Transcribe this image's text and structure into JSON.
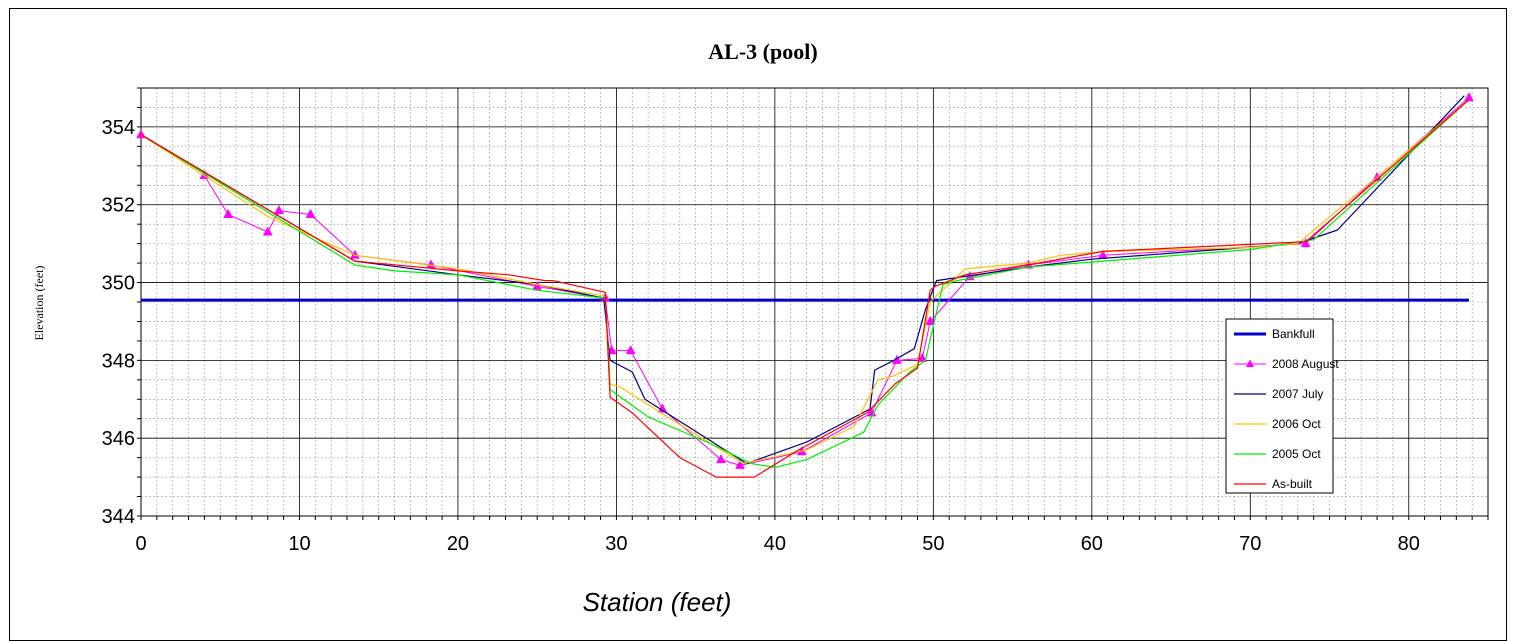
{
  "chart_data": {
    "type": "line",
    "title": "AL-3  (pool)",
    "xlabel": "Station (feet)",
    "ylabel": "Elevation (feet)",
    "xlim": [
      0,
      85
    ],
    "ylim": [
      344,
      355
    ],
    "x_ticks": [
      "0",
      "10",
      "20",
      "30",
      "40",
      "50",
      "60",
      "70",
      "80"
    ],
    "y_ticks": [
      "344",
      "346",
      "348",
      "350",
      "352",
      "354"
    ],
    "grid": true,
    "legend_placement": "right-lower",
    "series": [
      {
        "name": "Bankfull",
        "color": "#0000CC",
        "marker": "none",
        "width": 3,
        "x": [
          0,
          83.8
        ],
        "y": [
          349.55,
          349.55
        ]
      },
      {
        "name": "2008 August",
        "color": "#FF00FF",
        "marker": "triangle",
        "width": 1,
        "x": [
          0,
          4,
          5.5,
          8,
          8.7,
          10.7,
          13.5,
          18.3,
          25,
          29.3,
          29.7,
          30.9,
          32.9,
          36.6,
          37.8,
          41.7,
          46.1,
          47.7,
          49.3,
          49.8,
          52.3,
          56,
          60.7,
          73.5,
          78,
          83.8
        ],
        "y": [
          353.8,
          352.75,
          351.75,
          351.3,
          351.85,
          351.75,
          350.7,
          350.45,
          349.9,
          349.6,
          348.25,
          348.25,
          346.75,
          345.45,
          345.3,
          345.65,
          346.65,
          348,
          348.05,
          349,
          350.15,
          350.45,
          350.7,
          351,
          352.7,
          354.75
        ]
      },
      {
        "name": "2007 July",
        "color": "#000080",
        "marker": "none",
        "width": 1.2,
        "x": [
          0,
          13.5,
          20,
          25,
          29.2,
          29.6,
          31,
          31.8,
          38.2,
          42,
          46,
          46.3,
          47.5,
          48.8,
          49.5,
          50.2,
          56,
          60,
          73,
          75.5,
          83.5
        ],
        "y": [
          353.8,
          350.55,
          350.2,
          349.95,
          349.6,
          348,
          347.7,
          347,
          345.35,
          345.9,
          346.75,
          347.75,
          348,
          348.3,
          349.3,
          350.05,
          350.4,
          350.6,
          351,
          351.35,
          354.8
        ]
      },
      {
        "name": "2006 Oct",
        "color": "#FFC000",
        "marker": "none",
        "width": 1.2,
        "x": [
          0,
          8,
          13.5,
          20,
          25,
          29.3,
          29.6,
          30.3,
          33,
          38,
          42,
          45,
          46.5,
          47.5,
          49,
          49.8,
          52,
          56,
          58,
          61,
          70,
          73,
          83.8
        ],
        "y": [
          353.8,
          351.7,
          350.7,
          350.35,
          349.95,
          349.65,
          347.4,
          347.3,
          346.6,
          345.35,
          345.7,
          346.3,
          347.5,
          347.6,
          347.9,
          349.5,
          350.35,
          350.5,
          350.7,
          350.8,
          350.9,
          351,
          354.7
        ]
      },
      {
        "name": "2005 Oct",
        "color": "#00EE00",
        "marker": "none",
        "width": 1.2,
        "x": [
          0,
          13.5,
          16,
          20,
          25,
          29.3,
          29.6,
          32,
          36,
          38.5,
          40,
          42,
          45.6,
          46.5,
          48.5,
          49.5,
          50.6,
          51.5,
          56,
          70,
          74,
          83.8
        ],
        "y": [
          353.8,
          350.45,
          350.3,
          350.2,
          349.8,
          349.6,
          347.25,
          346.55,
          345.85,
          345.35,
          345.25,
          345.45,
          346.15,
          346.85,
          347.7,
          348,
          349.95,
          350.05,
          350.4,
          350.85,
          351.1,
          354.7
        ]
      },
      {
        "name": "As-built",
        "color": "#FF0000",
        "marker": "none",
        "width": 1.2,
        "x": [
          0,
          13.5,
          20,
          23.2,
          25.5,
          26,
          29.3,
          29.6,
          31,
          34,
          36.3,
          38.7,
          41.5,
          45.8,
          47.6,
          49,
          49.8,
          50.1,
          52,
          56.6,
          60.7,
          73.5,
          83.8
        ],
        "y": [
          353.8,
          350.55,
          350.3,
          350.2,
          350.05,
          350.05,
          349.75,
          347.05,
          346.65,
          345.5,
          345,
          345,
          345.7,
          346.65,
          347.4,
          347.8,
          349.8,
          349.9,
          350.2,
          350.5,
          350.8,
          351.05,
          354.7
        ]
      }
    ]
  }
}
